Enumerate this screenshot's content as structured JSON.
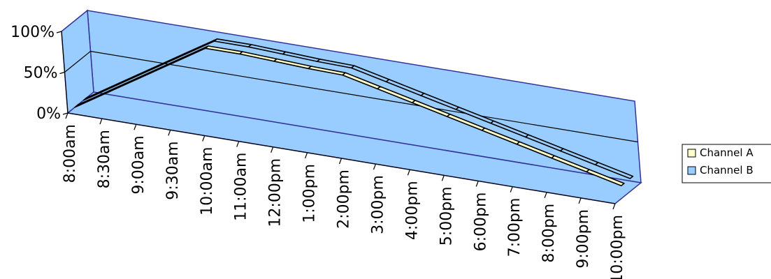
{
  "chart_data": {
    "type": "line",
    "variant": "3d-ribbon",
    "title": "",
    "xlabel": "",
    "ylabel": "",
    "categories": [
      "8:00am",
      "8:30am",
      "9:00am",
      "9:30am",
      "10:00am",
      "11:00am",
      "12:00pm",
      "1:00pm",
      "2:00pm",
      "3:00pm",
      "4:00pm",
      "5:00pm",
      "6:00pm",
      "7:00pm",
      "8:00pm",
      "9:00pm",
      "10:00pm"
    ],
    "ylim": [
      0,
      100
    ],
    "yticks": [
      "0%",
      "50%",
      "100%"
    ],
    "grid": true,
    "legend_position": "right",
    "series": [
      {
        "name": "Channel A",
        "color": "#ffffcc",
        "values": [
          0,
          25,
          50,
          75,
          100,
          100,
          98,
          96,
          95,
          85,
          75,
          65,
          55,
          45,
          35,
          25,
          15
        ]
      },
      {
        "name": "Channel B",
        "color": "#99ccff",
        "values": [
          0,
          25,
          50,
          75,
          100,
          100,
          98,
          96,
          95,
          85,
          75,
          65,
          55,
          45,
          35,
          25,
          15
        ]
      }
    ],
    "colors": {
      "walls": "#99ccff",
      "axis": "#333399",
      "line": "#000000"
    }
  }
}
